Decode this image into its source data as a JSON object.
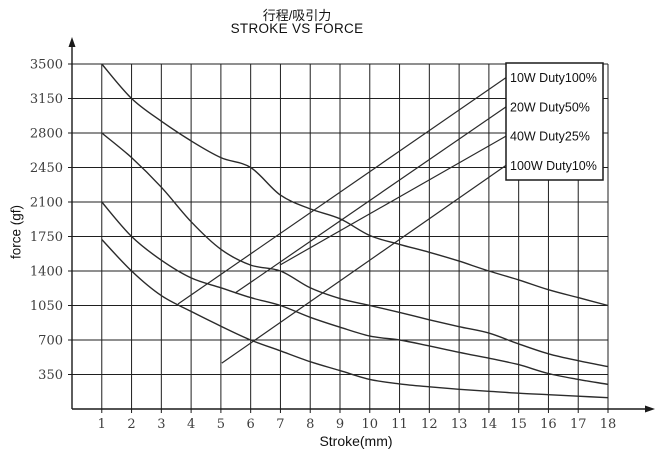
{
  "titles": {
    "zh": "行程/吸引力",
    "en": "STROKE VS FORCE"
  },
  "axes": {
    "x": {
      "label": "Stroke(mm)",
      "ticks": [
        1,
        2,
        3,
        4,
        5,
        6,
        7,
        8,
        9,
        10,
        11,
        12,
        13,
        14,
        15,
        16,
        17,
        18
      ]
    },
    "y": {
      "label": "force (gf)",
      "ticks": [
        350,
        700,
        1050,
        1400,
        1750,
        2100,
        2450,
        2800,
        3150,
        3500
      ]
    }
  },
  "legend": {
    "items": [
      "10W Duty100%",
      "20W Duty50%",
      "40W Duty25%",
      "100W Duty10%"
    ]
  },
  "colors": {
    "line": "#2b2b2b",
    "grid": "#1f1f1f",
    "axis": "#1a1a1a",
    "text": "#111111"
  },
  "chart_data": {
    "type": "line",
    "title": "STROKE VS FORCE",
    "subtitle": "行程/吸引力",
    "xlabel": "Stroke(mm)",
    "ylabel": "force (gf)",
    "xlim": [
      0,
      18
    ],
    "ylim": [
      0,
      3500
    ],
    "grid": true,
    "legend_position": "top-right",
    "x": [
      1,
      2,
      3,
      4,
      5,
      6,
      7,
      8,
      9,
      10,
      11,
      12,
      13,
      14,
      15,
      16,
      17,
      18
    ],
    "series": [
      {
        "name": "10W Duty100%",
        "values": [
          1720,
          1400,
          1150,
          990,
          840,
          700,
          590,
          480,
          390,
          300,
          255,
          225,
          200,
          180,
          160,
          145,
          130,
          115
        ]
      },
      {
        "name": "20W Duty50%",
        "values": [
          2100,
          1750,
          1510,
          1330,
          1230,
          1130,
          1050,
          930,
          830,
          740,
          700,
          640,
          575,
          515,
          450,
          360,
          300,
          250
        ]
      },
      {
        "name": "40W Duty25%",
        "values": [
          2800,
          2550,
          2250,
          1900,
          1620,
          1460,
          1400,
          1230,
          1120,
          1050,
          980,
          905,
          835,
          770,
          660,
          560,
          490,
          430
        ]
      },
      {
        "name": "100W Duty10%",
        "values": [
          3500,
          3150,
          2920,
          2720,
          2550,
          2450,
          2170,
          2030,
          1930,
          1760,
          1670,
          1590,
          1500,
          1400,
          1310,
          1210,
          1130,
          1050
        ]
      }
    ],
    "legend_leaders": {
      "note": "straight pointer lines from curve region to legend rows, order matches legend.items",
      "starts_data_coords": [
        [
          3.56,
          1065
        ],
        [
          5.47,
          1175
        ],
        [
          6.98,
          1460
        ],
        [
          5.03,
          465
        ]
      ]
    }
  }
}
